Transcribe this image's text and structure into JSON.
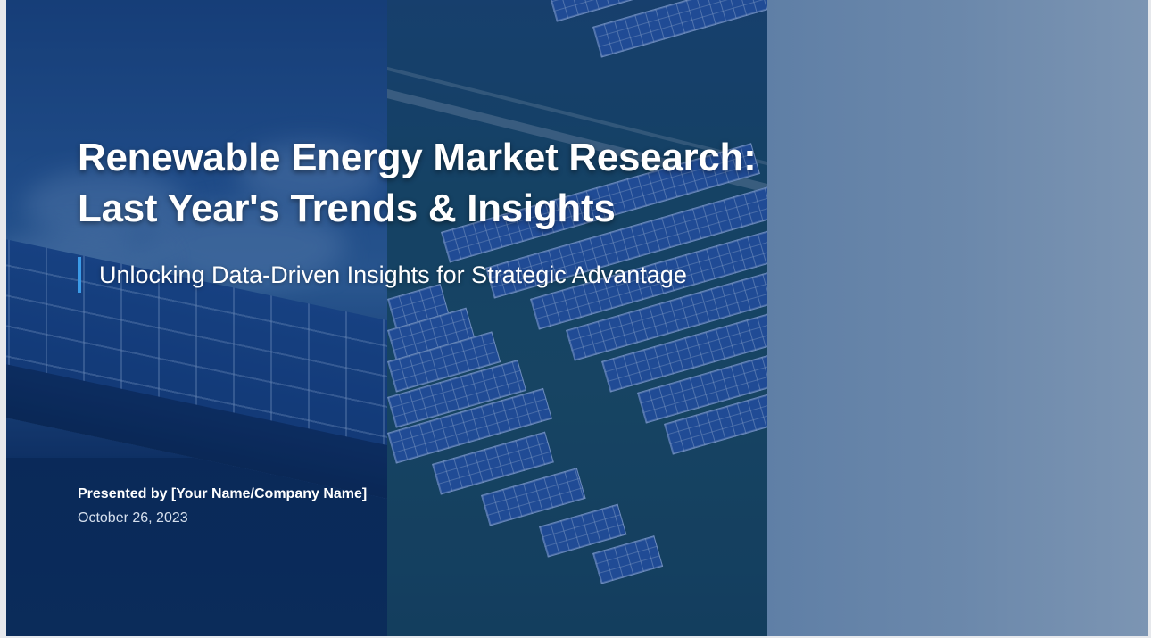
{
  "slide": {
    "title_line1": "Renewable Energy Market Research:",
    "title_line2": "Last Year's Trends & Insights",
    "subtitle": "Unlocking Data-Driven Insights for Strategic Advantage",
    "presenter": "Presented by [Your Name/Company Name]",
    "date": "October 26, 2023"
  },
  "colors": {
    "accent_bar": "#3b9be8",
    "overlay": "#0a2a5c",
    "right_panel": "#6b88ab",
    "text": "#ffffff"
  },
  "images": {
    "left": "solar-panels-with-sky-image",
    "middle": "aerial-solar-farm-image"
  }
}
